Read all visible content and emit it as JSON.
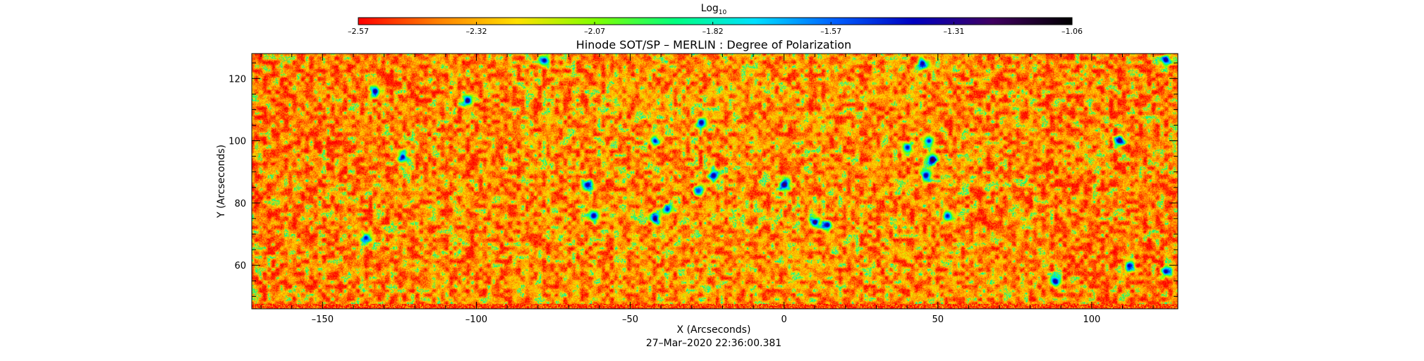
{
  "chart_data": {
    "type": "heatmap",
    "title": "Hinode SOT/SP – MERLIN : Degree of Polarization",
    "xlabel": "X (Arcseconds)",
    "ylabel": "Y (Arcseconds)",
    "timestamp": "27–Mar–2020 22:36:00.381",
    "xlim": [
      -173,
      128
    ],
    "ylim": [
      46,
      128
    ],
    "x_ticks": [
      "–150",
      "–100",
      "–50",
      "0",
      "50",
      "100"
    ],
    "x_tick_values": [
      -150,
      -100,
      -50,
      0,
      50,
      100
    ],
    "y_ticks": [
      "60",
      "80",
      "100",
      "120"
    ],
    "y_tick_values": [
      60,
      80,
      100,
      120
    ],
    "colorbar": {
      "label_base": "Log",
      "label_sub": "10",
      "range": [
        -2.57,
        -1.06
      ],
      "tick_labels": [
        "–2.57",
        "–2.32",
        "–2.07",
        "–1.82",
        "–1.57",
        "–1.31",
        "–1.06"
      ],
      "tick_values": [
        -2.57,
        -2.32,
        -2.07,
        -1.82,
        -1.57,
        -1.31,
        -1.06
      ],
      "colors": [
        "#ff0000",
        "#ff8000",
        "#ffe000",
        "#80ff00",
        "#00ff80",
        "#00e0ff",
        "#0060ff",
        "#0000c0",
        "#400060",
        "#000000"
      ]
    },
    "background_level": -2.4,
    "features": [
      {
        "x": -124,
        "y": 95,
        "level": -1.3
      },
      {
        "x": -133,
        "y": 116,
        "level": -1.3
      },
      {
        "x": -103,
        "y": 113,
        "level": -1.25
      },
      {
        "x": -78,
        "y": 126,
        "level": -1.3
      },
      {
        "x": -64,
        "y": 86,
        "level": -1.3
      },
      {
        "x": -62,
        "y": 76,
        "level": -1.3
      },
      {
        "x": -42,
        "y": 75,
        "level": -1.15
      },
      {
        "x": -38,
        "y": 78,
        "level": -1.4
      },
      {
        "x": -42,
        "y": 100,
        "level": -1.4
      },
      {
        "x": -27,
        "y": 106,
        "level": -1.3
      },
      {
        "x": -23,
        "y": 89,
        "level": -1.3
      },
      {
        "x": 0,
        "y": 86,
        "level": -1.2
      },
      {
        "x": 10,
        "y": 74,
        "level": -1.2
      },
      {
        "x": 14,
        "y": 73,
        "level": -1.3
      },
      {
        "x": 47,
        "y": 100,
        "level": -1.4
      },
      {
        "x": 48,
        "y": 94,
        "level": -1.15
      },
      {
        "x": 46,
        "y": 89,
        "level": -1.3
      },
      {
        "x": 45,
        "y": 125,
        "level": -1.3
      },
      {
        "x": 53,
        "y": 76,
        "level": -1.4
      },
      {
        "x": 109,
        "y": 100,
        "level": -1.2
      },
      {
        "x": 112,
        "y": 60,
        "level": -1.3
      },
      {
        "x": 124,
        "y": 126,
        "level": -1.3
      },
      {
        "x": 124,
        "y": 58,
        "level": -1.3
      },
      {
        "x": 88,
        "y": 55,
        "level": -1.3
      },
      {
        "x": -136,
        "y": 69,
        "level": -1.4
      },
      {
        "x": -28,
        "y": 84,
        "level": -1.5
      },
      {
        "x": 40,
        "y": 98,
        "level": -1.4
      }
    ]
  }
}
